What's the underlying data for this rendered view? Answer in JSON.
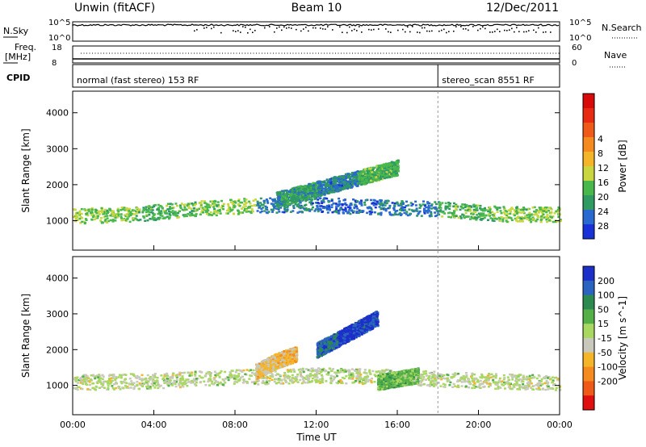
{
  "header": {
    "station": "Unwin (fitACF)",
    "beam": "Beam 10",
    "date": "12/Dec/2011"
  },
  "summary": {
    "nsky_label": "N.Sky",
    "nsky_ticks": [
      "10^5",
      "10^0"
    ],
    "nsearch_label": "N.Search",
    "nsearch_ticks": [
      "10^5",
      "10^0"
    ],
    "freq_label": "Freq.",
    "freq_unit": "[MHz]",
    "freq_ticks": [
      "18",
      "8"
    ],
    "nave_label": "Nave",
    "nave_ticks": [
      "60",
      "0"
    ],
    "cpid_label": "CPID",
    "cpid_segments": [
      {
        "name": "normal (fast stereo)",
        "cpid": "153",
        "rf": "RF",
        "start_hour": 0
      },
      {
        "name": "stereo_scan",
        "cpid": "8551",
        "rf": "RF",
        "start_hour": 18.0
      }
    ]
  },
  "chart_data": [
    {
      "type": "heatmap",
      "title": "",
      "xlabel": "",
      "ylabel": "Slant Range [km]",
      "xlim": [
        0,
        24
      ],
      "ylim": [
        180,
        4600
      ],
      "x_tick_labels": [
        "00:00",
        "04:00",
        "08:00",
        "12:00",
        "16:00",
        "20:00",
        "00:00"
      ],
      "y_ticks": [
        1000,
        2000,
        3000,
        4000
      ],
      "colorbar": {
        "label": "Power [dB]",
        "ticks": [
          "4",
          "8",
          "12",
          "16",
          "20",
          "24",
          "28"
        ],
        "colors": [
          "#1832d8",
          "#2a6ad0",
          "#2f9a62",
          "#49b84c",
          "#c9d640",
          "#f5b528",
          "#f58a1e",
          "#f05a18",
          "#e82a12",
          "#d80a0a"
        ]
      },
      "bands": [
        {
          "name": "near_range_band",
          "x": [
            0,
            3,
            6,
            9,
            12,
            15,
            18,
            21,
            24
          ],
          "y_center_km": [
            1150,
            1200,
            1350,
            1450,
            1450,
            1400,
            1350,
            1200,
            1200
          ],
          "power_db": [
            20,
            22,
            20,
            26,
            28,
            26,
            22,
            20,
            18
          ]
        },
        {
          "name": "oblique_band",
          "x": [
            10,
            12,
            14,
            16
          ],
          "y_center_km": [
            1600,
            1900,
            2200,
            2500
          ],
          "power_db": [
            24,
            26,
            22,
            18
          ]
        }
      ]
    },
    {
      "type": "heatmap",
      "title": "",
      "xlabel": "Time UT",
      "ylabel": "Slant Range [km]",
      "xlim": [
        0,
        24
      ],
      "ylim": [
        180,
        4600
      ],
      "x_tick_labels": [
        "00:00",
        "04:00",
        "08:00",
        "12:00",
        "16:00",
        "20:00",
        "00:00"
      ],
      "y_ticks": [
        1000,
        2000,
        3000,
        4000
      ],
      "colorbar": {
        "label": "Velocity [m s^-1]",
        "ticks": [
          "200",
          "100",
          "50",
          "15",
          "-15",
          "-50",
          "-100",
          "-200"
        ],
        "colors": [
          "#1c2fc8",
          "#2a64c0",
          "#2c8a50",
          "#55b04a",
          "#a8d860",
          "#c8c8bc",
          "#f5b528",
          "#f58a1e",
          "#f05a18",
          "#e01010"
        ]
      },
      "bands": [
        {
          "name": "ground_scatter",
          "x": [
            0,
            4,
            8,
            12,
            16,
            20,
            24
          ],
          "y_center_km": [
            1100,
            1150,
            1250,
            1300,
            1250,
            1150,
            1100
          ],
          "velocity_ms": [
            0,
            0,
            0,
            0,
            0,
            0,
            0
          ]
        },
        {
          "name": "ionospheric_toward",
          "x": [
            12,
            13,
            14,
            15
          ],
          "y_center_km": [
            2000,
            2300,
            2600,
            2900
          ],
          "velocity_ms": [
            150,
            200,
            180,
            120
          ]
        },
        {
          "name": "ionospheric_away",
          "x": [
            9,
            10,
            11
          ],
          "y_center_km": [
            1400,
            1700,
            1900
          ],
          "velocity_ms": [
            -50,
            -60,
            -40
          ]
        },
        {
          "name": "green_region",
          "x": [
            15,
            16,
            17
          ],
          "y_center_km": [
            1100,
            1200,
            1300
          ],
          "velocity_ms": [
            60,
            50,
            40
          ]
        }
      ]
    }
  ]
}
